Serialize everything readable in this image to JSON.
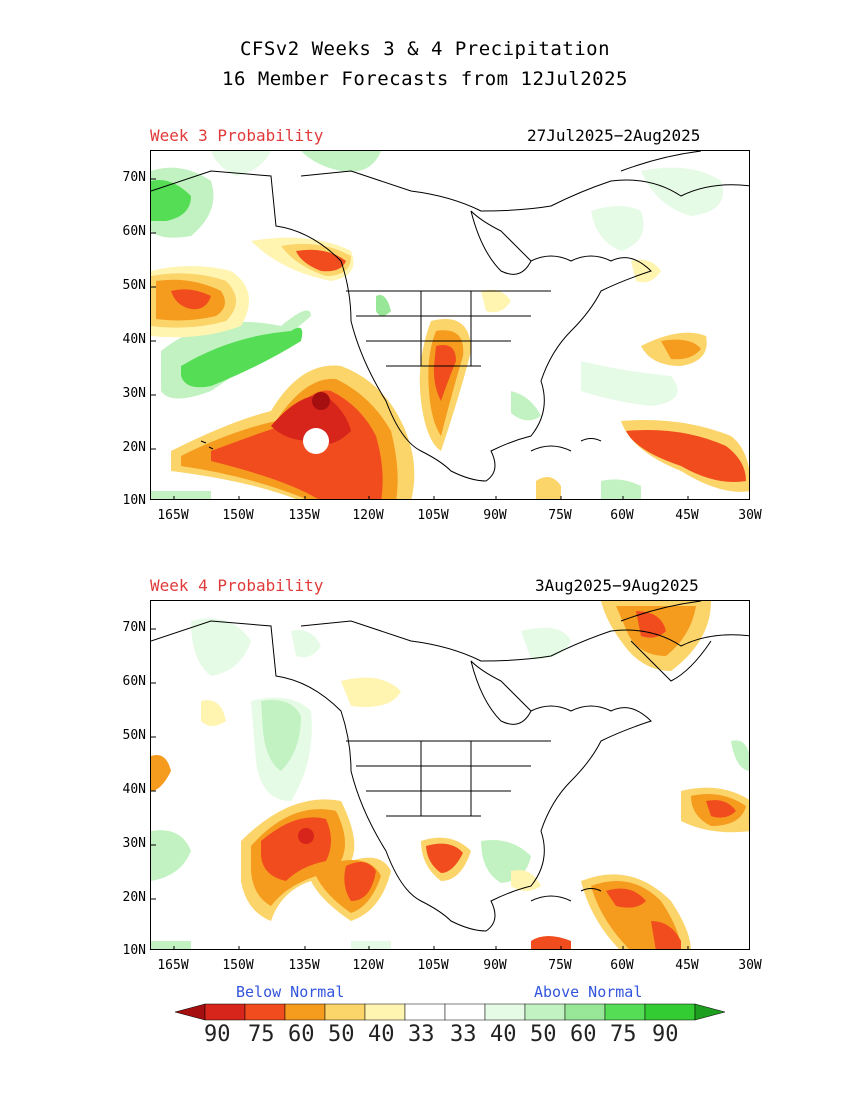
{
  "title_line1": "CFSv2 Weeks 3 & 4 Precipitation",
  "title_line2": "16 Member Forecasts from 12Jul2025",
  "panels": [
    {
      "label": "Week 3 Probability",
      "dates": "27Jul2025−2Aug2025"
    },
    {
      "label": "Week 4 Probability",
      "dates": "3Aug2025−9Aug2025"
    }
  ],
  "lat_labels": [
    "70N",
    "60N",
    "50N",
    "40N",
    "30N",
    "20N",
    "10N"
  ],
  "lon_labels": [
    "165W",
    "150W",
    "135W",
    "120W",
    "105W",
    "90W",
    "75W",
    "60W",
    "45W",
    "30W"
  ],
  "legend": {
    "below_label": "Below Normal",
    "above_label": "Above Normal",
    "values": [
      "90",
      "75",
      "60",
      "50",
      "40",
      "33",
      "33",
      "40",
      "50",
      "60",
      "75",
      "90"
    ],
    "colors": {
      "below_90": "#a50f0f",
      "below_75": "#d7251b",
      "below_60": "#f04c1e",
      "below_50": "#f59b1e",
      "below_40": "#fbd46a",
      "below_33": "#fff4b0",
      "neutral": "#ffffff",
      "above_33": "#e6fbe6",
      "above_40": "#c2f2c2",
      "above_50": "#98e698",
      "above_60": "#55dd55",
      "above_75": "#33cc33",
      "above_90": "#1e9e1e"
    }
  }
}
